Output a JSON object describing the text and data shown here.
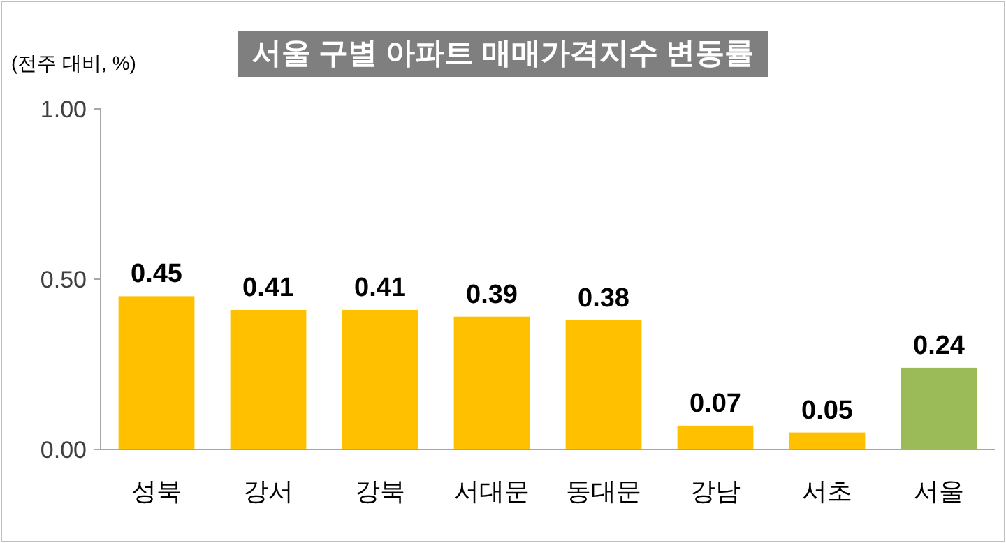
{
  "chart_data": {
    "type": "bar",
    "title": "서울 구별 아파트 매매가격지수 변동률",
    "ylabel": "(전주 대비, %)",
    "categories": [
      "성북",
      "강서",
      "강북",
      "서대문",
      "동대문",
      "강남",
      "서초",
      "서울"
    ],
    "values": [
      0.45,
      0.41,
      0.41,
      0.39,
      0.38,
      0.07,
      0.05,
      0.24
    ],
    "colors": [
      "#ffc000",
      "#ffc000",
      "#ffc000",
      "#ffc000",
      "#ffc000",
      "#ffc000",
      "#ffc000",
      "#9bbb59"
    ],
    "ylim": [
      0,
      1
    ],
    "yticks": [
      {
        "value": 0,
        "label": "0.00"
      },
      {
        "value": 0.5,
        "label": "0.50"
      },
      {
        "value": 1,
        "label": "1.00"
      }
    ],
    "data_labels": true,
    "grid": false
  }
}
